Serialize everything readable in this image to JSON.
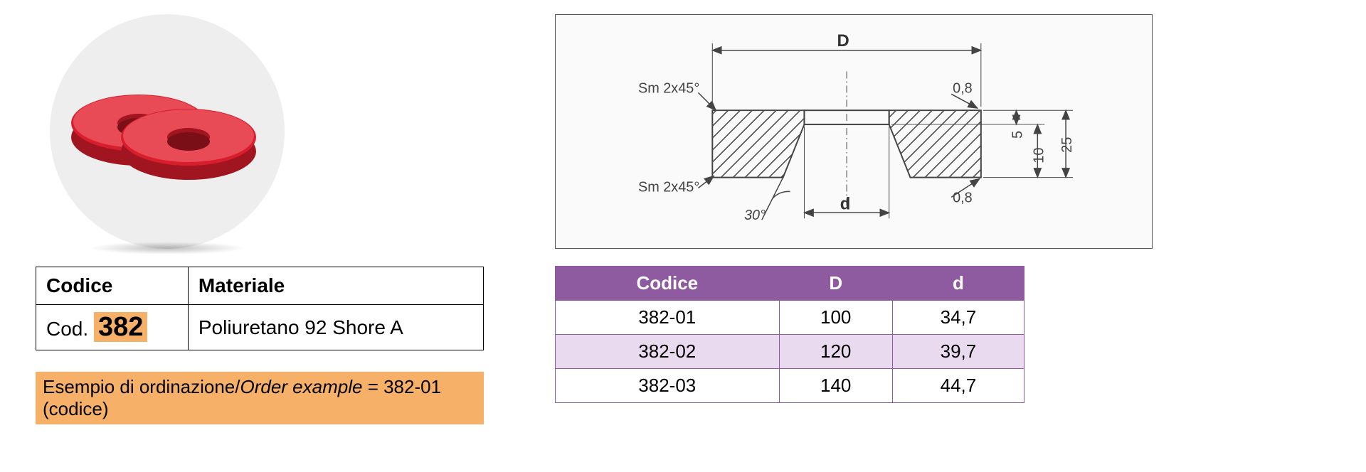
{
  "product": {
    "image_bg_color": "#eeeeee",
    "washer_color": "#d81e2c",
    "washer_highlight": "#e84a56",
    "washer_shadow": "#a11520"
  },
  "material_table": {
    "header_codice": "Codice",
    "header_materiale": "Materiale",
    "cod_prefix": "Cod. ",
    "cod_number": "382",
    "materiale_value": "Poliuretano 92 Shore A",
    "cod_highlight_bg": "#f7b068",
    "border_color": "#000000",
    "font_size_header": 28,
    "font_size_cod_number": 38
  },
  "order_example": {
    "text_it": "Esempio di ordinazione/",
    "text_en": "Order example",
    "text_suffix": " = 382-01 (codice)",
    "bg_color": "#f7b068",
    "font_size": 26
  },
  "diagram": {
    "border_color": "#555555",
    "bg_color": "#fafafa",
    "line_color": "#444444",
    "hatch_color": "#444444",
    "labels": {
      "D": "D",
      "d": "d",
      "sm_top": "Sm 2x45°",
      "sm_bottom": "Sm 2x45°",
      "r08_top": "0,8",
      "r08_bottom": "0,8",
      "angle30": "30°",
      "dim5": "5",
      "dim10": "10",
      "dim25": "25"
    }
  },
  "sizes_table": {
    "header_bg": "#8e5aa0",
    "row_alt_bg": "#eadaf0",
    "row_bg": "#ffffff",
    "border_color": "#8e5aa0",
    "text_color": "#000000",
    "header_text_color": "#ffffff",
    "font_size": 26,
    "columns": [
      "Codice",
      "D",
      "d"
    ],
    "rows": [
      [
        "382-01",
        "100",
        "34,7"
      ],
      [
        "382-02",
        "120",
        "39,7"
      ],
      [
        "382-03",
        "140",
        "44,7"
      ]
    ]
  }
}
